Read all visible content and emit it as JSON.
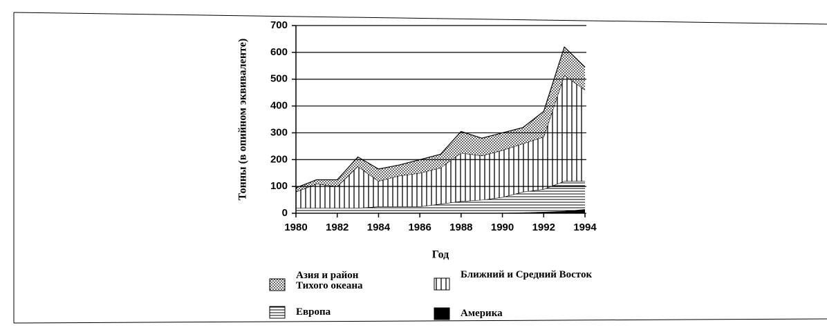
{
  "chart_data": {
    "type": "stacked_area",
    "y_label": "Тонны (в опийном эквиваленте)",
    "x_label": "Год",
    "x": [
      1980,
      1981,
      1982,
      1983,
      1984,
      1985,
      1986,
      1987,
      1988,
      1989,
      1990,
      1991,
      1992,
      1993,
      1994
    ],
    "xlim": [
      1980,
      1994
    ],
    "xticks": [
      1980,
      1982,
      1984,
      1986,
      1988,
      1990,
      1992,
      1994
    ],
    "ylim": [
      0,
      700
    ],
    "yticks": [
      0,
      100,
      200,
      300,
      400,
      500,
      600,
      700
    ],
    "grid": true,
    "series": [
      {
        "name": "Америка",
        "color": "#000000",
        "pattern": "solid",
        "values": [
          2,
          2,
          2,
          2,
          2,
          2,
          2,
          2,
          2,
          2,
          2,
          3,
          5,
          8,
          15
        ]
      },
      {
        "name": "Европа",
        "color": "#000000",
        "pattern": "hlines",
        "values": [
          18,
          18,
          18,
          18,
          23,
          23,
          23,
          33,
          43,
          48,
          58,
          77,
          85,
          112,
          105
        ]
      },
      {
        "name": "Ближний и Средний Восток",
        "color": "#000000",
        "pattern": "vlines",
        "values": [
          60,
          90,
          80,
          155,
          95,
          115,
          125,
          135,
          180,
          165,
          175,
          180,
          195,
          395,
          340
        ]
      },
      {
        "name": "Азия и район Тихого океана",
        "color": "#000000",
        "pattern": "dots",
        "values": [
          15,
          15,
          25,
          35,
          45,
          40,
          50,
          50,
          80,
          65,
          65,
          60,
          95,
          105,
          85
        ]
      }
    ]
  }
}
